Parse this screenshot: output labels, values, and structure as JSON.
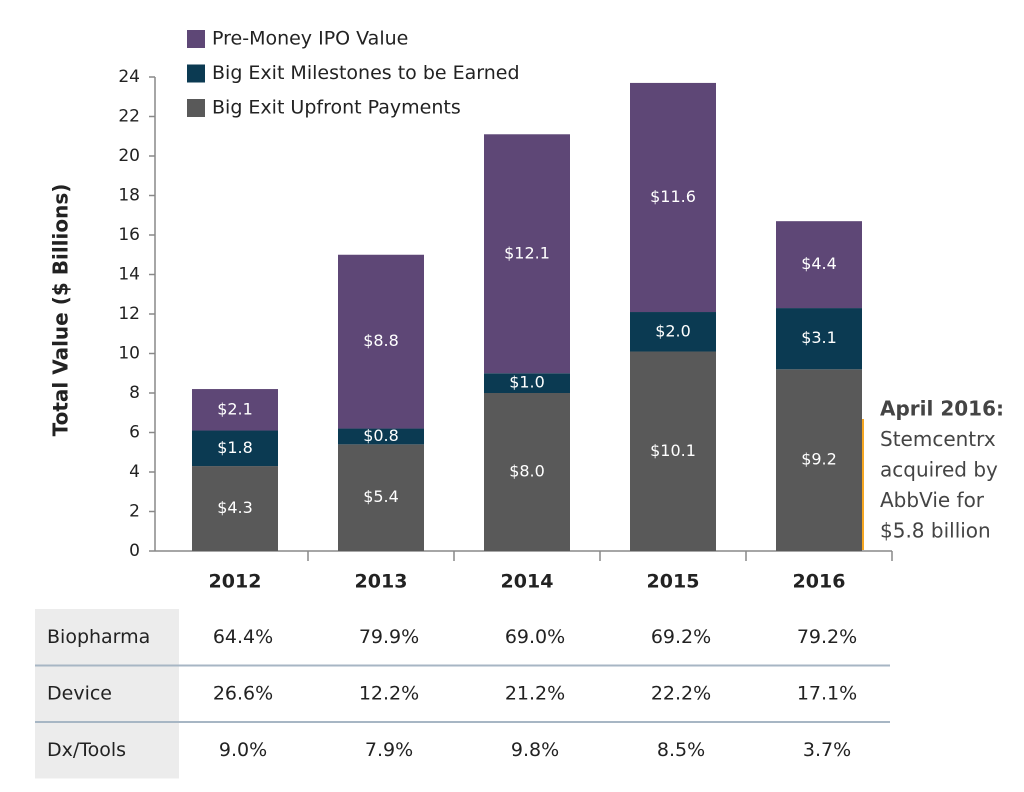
{
  "chart_data": {
    "type": "stacked_bar",
    "y_label": "Total Value ($ Billions)",
    "categories": [
      "2012",
      "2013",
      "2014",
      "2015",
      "2016"
    ],
    "series": [
      {
        "name": "Big Exit Upfront Payments",
        "color": "#595959",
        "values": [
          4.3,
          5.4,
          8.0,
          10.1,
          9.2
        ],
        "value_labels": [
          "$4.3",
          "$5.4",
          "$8.0",
          "$10.1",
          "$9.2"
        ]
      },
      {
        "name": "Big Exit Milestones to be Earned",
        "color": "#0b3a52",
        "values": [
          1.8,
          0.8,
          1.0,
          2.0,
          3.1
        ],
        "value_labels": [
          "$1.8",
          "$0.8",
          "$1.0",
          "$2.0",
          "$3.1"
        ]
      },
      {
        "name": "Pre-Money IPO Value",
        "color": "#5e4776",
        "values": [
          2.1,
          8.8,
          12.1,
          11.6,
          4.4
        ],
        "value_labels": [
          "$2.1",
          "$8.8",
          "$12.1",
          "$11.6",
          "$4.4"
        ]
      }
    ],
    "ylim": [
      0,
      24
    ],
    "yticks": [
      0,
      2,
      4,
      6,
      8,
      10,
      12,
      14,
      16,
      18,
      20,
      22,
      24
    ],
    "annotation": [
      "April 2016:",
      "Stemcentrx",
      "acquired by",
      "AbbVie for",
      "$5.8 billion"
    ]
  },
  "table": {
    "rows": [
      [
        "Biopharma",
        "64.4%",
        "79.9%",
        "69.0%",
        "69.2%",
        "79.2%"
      ],
      [
        "Device",
        "26.6%",
        "12.2%",
        "21.2%",
        "22.2%",
        "17.1%"
      ],
      [
        "Dx/Tools",
        "9.0%",
        "7.9%",
        "9.8%",
        "8.5%",
        "3.7%"
      ]
    ]
  }
}
